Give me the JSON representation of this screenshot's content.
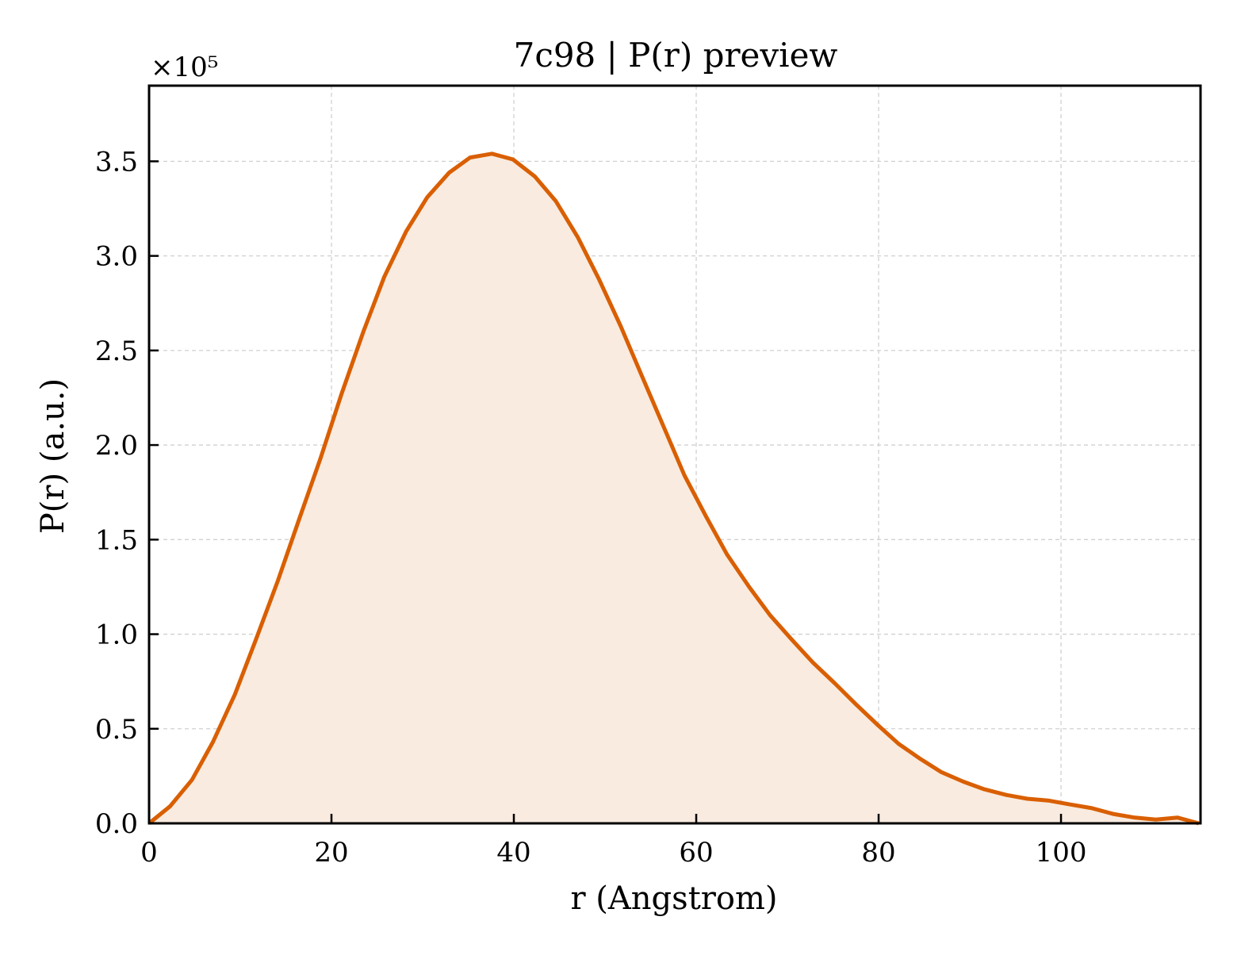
{
  "chart_data": {
    "type": "area",
    "title": "7c98 | P(r) preview",
    "xlabel": "r (Angstrom)",
    "ylabel": "P(r) (a.u.)",
    "y_multiplier": "×10⁵",
    "xlim": [
      0,
      115.3
    ],
    "ylim": [
      0,
      3.9
    ],
    "x_ticks": [
      0,
      20,
      40,
      60,
      80,
      100
    ],
    "y_ticks": [
      0.0,
      0.5,
      1.0,
      1.5,
      2.0,
      2.5,
      3.0,
      3.5
    ],
    "x_tick_labels": [
      "0",
      "20",
      "40",
      "60",
      "80",
      "100"
    ],
    "y_tick_labels": [
      "0.0",
      "0.5",
      "1.0",
      "1.5",
      "2.0",
      "2.5",
      "3.0",
      "3.5"
    ],
    "grid": true,
    "line_color": "#d95f02",
    "fill_color": "#f9ebe0",
    "series": [
      {
        "x": [
          0,
          2.3,
          4.7,
          7.0,
          9.4,
          11.7,
          14.1,
          16.4,
          18.8,
          21.1,
          23.5,
          25.8,
          28.2,
          30.5,
          32.9,
          35.2,
          37.6,
          39.9,
          42.3,
          44.6,
          47.0,
          49.3,
          51.7,
          54.0,
          56.4,
          58.7,
          61.1,
          63.4,
          65.8,
          68.1,
          70.5,
          72.8,
          75.2,
          77.5,
          79.9,
          82.2,
          84.6,
          86.9,
          89.3,
          91.6,
          94.0,
          96.3,
          98.7,
          101.0,
          103.4,
          105.7,
          108.1,
          110.4,
          112.8,
          115.1
        ],
        "y": [
          0.0,
          0.09,
          0.23,
          0.43,
          0.68,
          0.97,
          1.28,
          1.6,
          1.93,
          2.27,
          2.6,
          2.89,
          3.13,
          3.31,
          3.44,
          3.52,
          3.54,
          3.51,
          3.42,
          3.29,
          3.1,
          2.88,
          2.63,
          2.37,
          2.1,
          1.84,
          1.62,
          1.42,
          1.25,
          1.1,
          0.97,
          0.85,
          0.74,
          0.63,
          0.52,
          0.42,
          0.34,
          0.27,
          0.22,
          0.18,
          0.15,
          0.13,
          0.12,
          0.1,
          0.08,
          0.05,
          0.03,
          0.02,
          0.03,
          0.0
        ]
      }
    ]
  }
}
